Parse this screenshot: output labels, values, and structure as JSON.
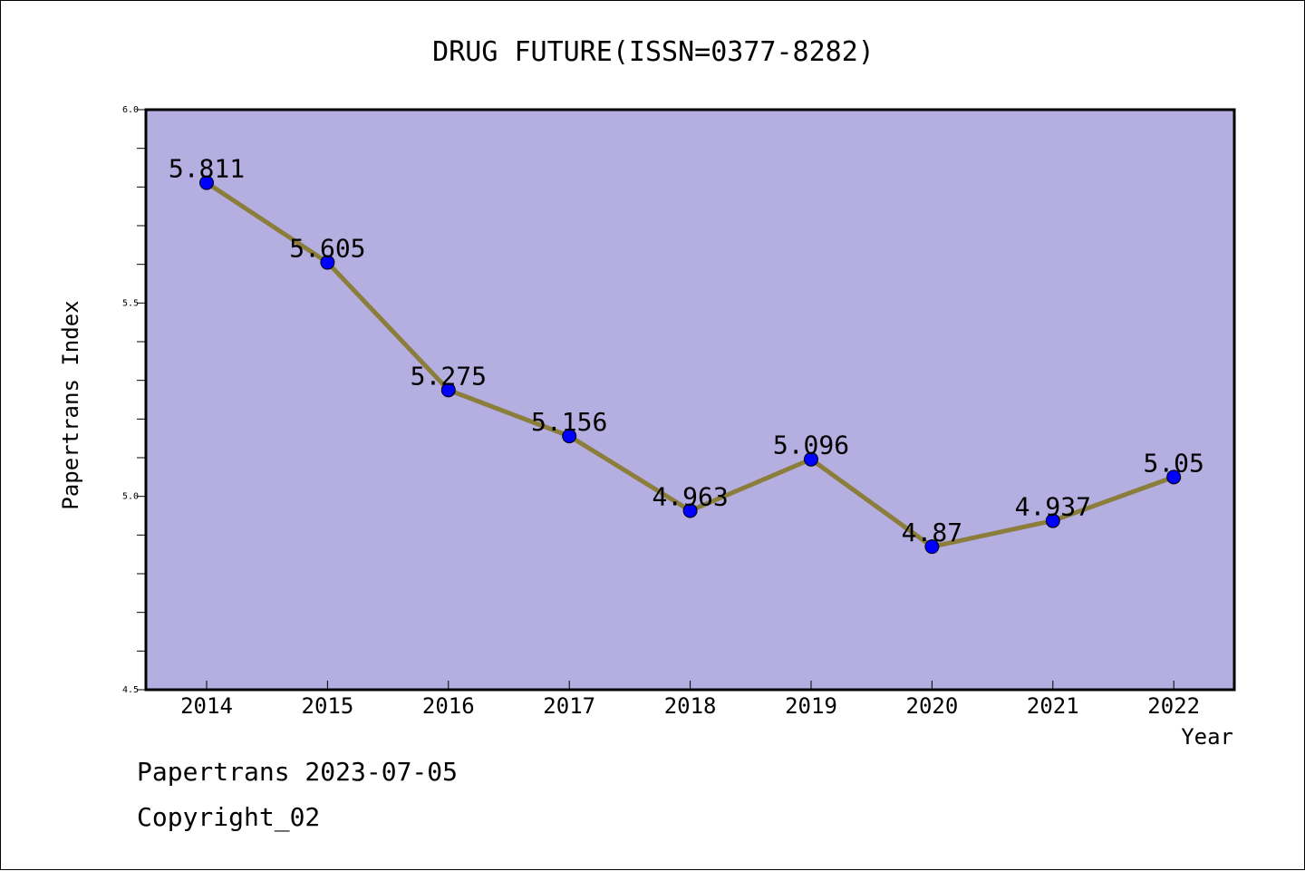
{
  "chart_data": {
    "type": "line",
    "title": "DRUG FUTURE(ISSN=0377-8282)",
    "xlabel": "Year",
    "ylabel": "Papertrans Index",
    "categories": [
      "2014",
      "2015",
      "2016",
      "2017",
      "2018",
      "2019",
      "2020",
      "2021",
      "2022"
    ],
    "values": [
      5.811,
      5.605,
      5.275,
      5.156,
      4.963,
      5.096,
      4.87,
      4.937,
      5.05
    ],
    "data_labels": [
      "5.811",
      "5.605",
      "5.275",
      "5.156",
      "4.963",
      "5.096",
      "4.87",
      "4.937",
      "5.05"
    ],
    "ylim": [
      4.5,
      6.0
    ],
    "y_ticks": [
      "4.5",
      "5.0",
      "5.5",
      "6.0"
    ],
    "y_tick_values": [
      4.5,
      5.0,
      5.5,
      6.0
    ],
    "y_minor_step": 0.1,
    "grid": false,
    "colors": {
      "plot_background": "#b5aee1",
      "line": "#8b7d3a",
      "marker": "#0000ff",
      "axes": "#000000"
    }
  },
  "footer": {
    "date_text": "Papertrans 2023-07-05",
    "copyright_text": "Copyright_02"
  }
}
